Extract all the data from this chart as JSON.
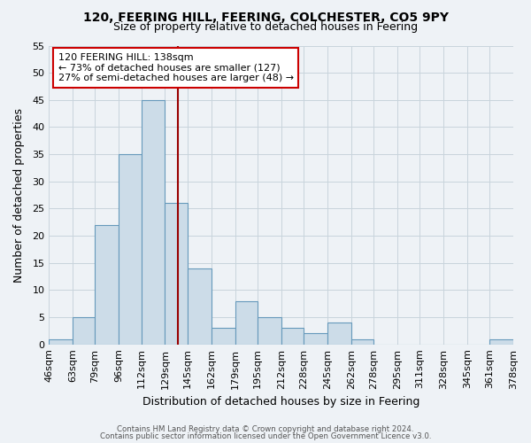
{
  "title": "120, FEERING HILL, FEERING, COLCHESTER, CO5 9PY",
  "subtitle": "Size of property relative to detached houses in Feering",
  "xlabel": "Distribution of detached houses by size in Feering",
  "ylabel": "Number of detached properties",
  "bar_values": [
    1,
    5,
    22,
    35,
    45,
    26,
    14,
    3,
    8,
    5,
    3,
    2,
    4,
    1,
    0,
    0,
    0,
    0,
    0,
    1
  ],
  "bin_edges": [
    46,
    63,
    79,
    96,
    112,
    129,
    145,
    162,
    179,
    195,
    212,
    228,
    245,
    262,
    278,
    295,
    311,
    328,
    345,
    361,
    378
  ],
  "bin_labels": [
    "46sqm",
    "63sqm",
    "79sqm",
    "96sqm",
    "112sqm",
    "129sqm",
    "145sqm",
    "162sqm",
    "179sqm",
    "195sqm",
    "212sqm",
    "228sqm",
    "245sqm",
    "262sqm",
    "278sqm",
    "295sqm",
    "311sqm",
    "328sqm",
    "345sqm",
    "361sqm",
    "378sqm"
  ],
  "bar_color": "#ccdce8",
  "bar_edge_color": "#6699bb",
  "vline_x": 138,
  "vline_color": "#990000",
  "annotation_line1": "120 FEERING HILL: 138sqm",
  "annotation_line2": "← 73% of detached houses are smaller (127)",
  "annotation_line3": "27% of semi-detached houses are larger (48) →",
  "annotation_box_facecolor": "#ffffff",
  "annotation_box_edgecolor": "#cc0000",
  "ylim": [
    0,
    55
  ],
  "yticks": [
    0,
    5,
    10,
    15,
    20,
    25,
    30,
    35,
    40,
    45,
    50,
    55
  ],
  "footnote1": "Contains HM Land Registry data © Crown copyright and database right 2024.",
  "footnote2": "Contains public sector information licensed under the Open Government Licence v3.0.",
  "grid_color": "#c8d4dc",
  "background_color": "#eef2f6"
}
